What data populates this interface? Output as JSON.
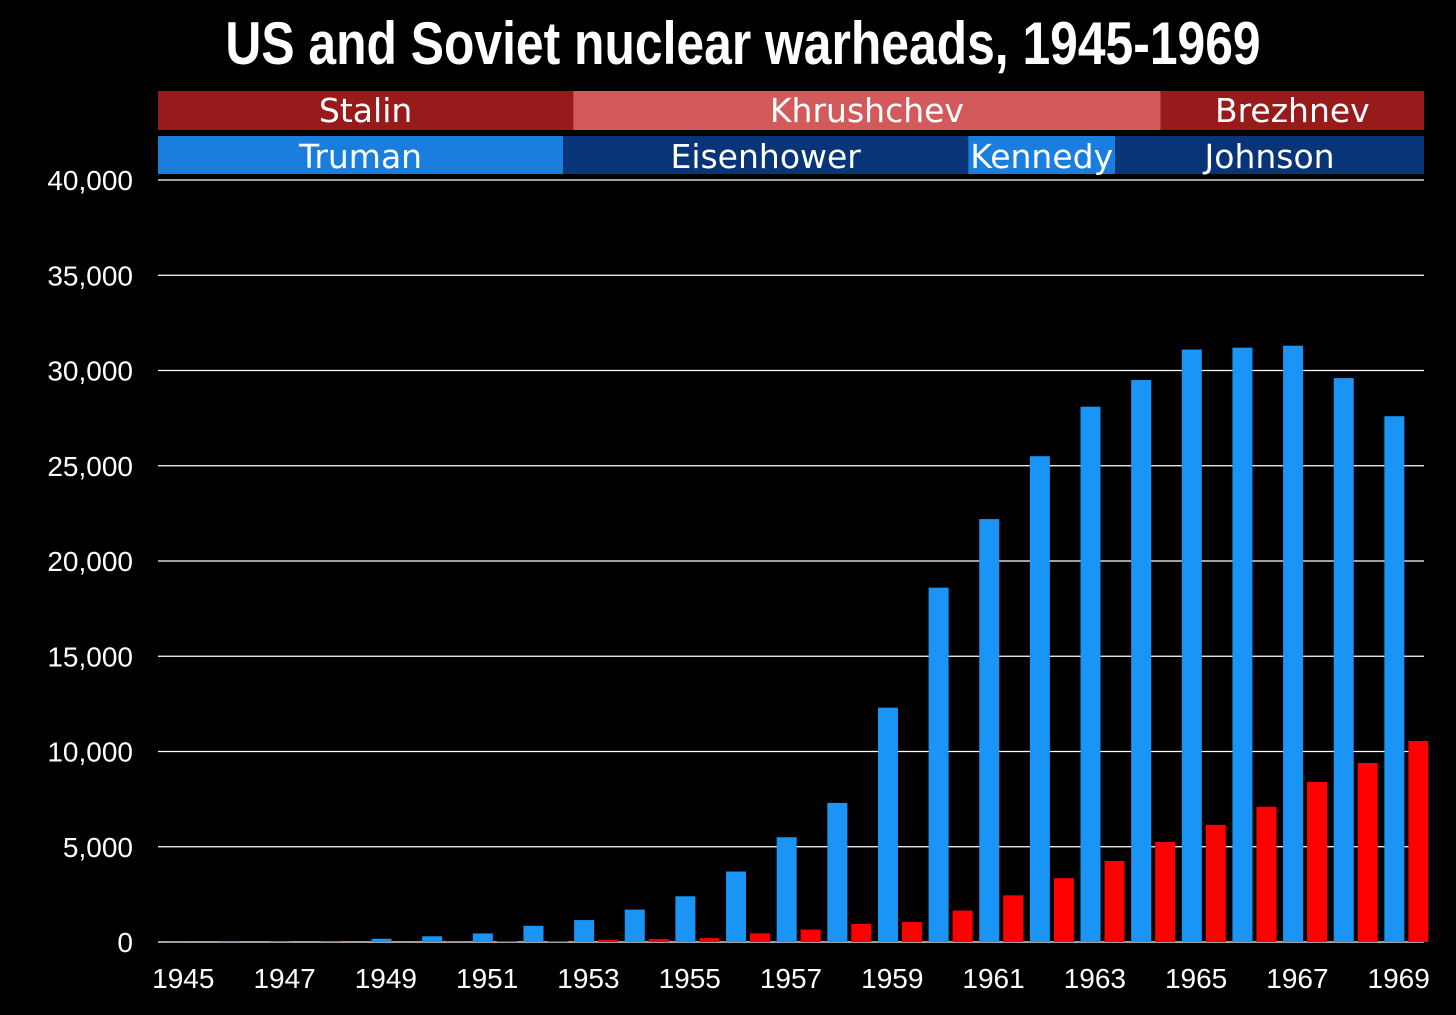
{
  "chart_data": {
    "type": "bar",
    "title": "US and Soviet nuclear warheads, 1945-1969",
    "categories": [
      "1945",
      "1946",
      "1947",
      "1948",
      "1949",
      "1950",
      "1951",
      "1952",
      "1953",
      "1954",
      "1955",
      "1956",
      "1957",
      "1958",
      "1959",
      "1960",
      "1961",
      "1962",
      "1963",
      "1964",
      "1965",
      "1966",
      "1967",
      "1968",
      "1969"
    ],
    "x_tick_labels": [
      "1945",
      "1947",
      "1949",
      "1951",
      "1953",
      "1955",
      "1957",
      "1959",
      "1961",
      "1963",
      "1965",
      "1967",
      "1969"
    ],
    "y_tick_labels": [
      "0",
      "5,000",
      "10,000",
      "15,000",
      "20,000",
      "25,000",
      "30,000",
      "35,000",
      "40,000"
    ],
    "ylim": [
      0,
      40000
    ],
    "grid": true,
    "series": [
      {
        "values": [
          2,
          9,
          13,
          50,
          170,
          300,
          450,
          850,
          1150,
          1700,
          2400,
          3700,
          5500,
          7300,
          12300,
          18600,
          22200,
          25500,
          28100,
          29500,
          31100,
          31200,
          31300,
          29600,
          27600
        ],
        "color": "#1a95f5"
      },
      {
        "values": [
          0,
          0,
          0,
          0,
          1,
          5,
          25,
          50,
          120,
          150,
          200,
          450,
          650,
          950,
          1050,
          1650,
          2450,
          3350,
          4250,
          5250,
          6150,
          7100,
          8400,
          9400,
          10550
        ],
        "color": "#ff0000"
      }
    ],
    "leaders": {
      "soviet": [
        {
          "name": "Stalin",
          "start": 1945,
          "end": 1953.2,
          "color": "#981a1a"
        },
        {
          "name": "Khrushchev",
          "start": 1953.2,
          "end": 1964.8,
          "color": "#d35a5a"
        },
        {
          "name": "Brezhnev",
          "start": 1964.8,
          "end": 1970,
          "color": "#981a1a"
        }
      ],
      "us": [
        {
          "name": "Truman",
          "start": 1945,
          "end": 1953,
          "color": "#1a7ede"
        },
        {
          "name": "Eisenhower",
          "start": 1953,
          "end": 1961,
          "color": "#0a3478"
        },
        {
          "name": "Kennedy",
          "start": 1961,
          "end": 1963.9,
          "color": "#1a7ede"
        },
        {
          "name": "Johnson",
          "start": 1963.9,
          "end": 1970,
          "color": "#0a3478"
        }
      ]
    }
  }
}
